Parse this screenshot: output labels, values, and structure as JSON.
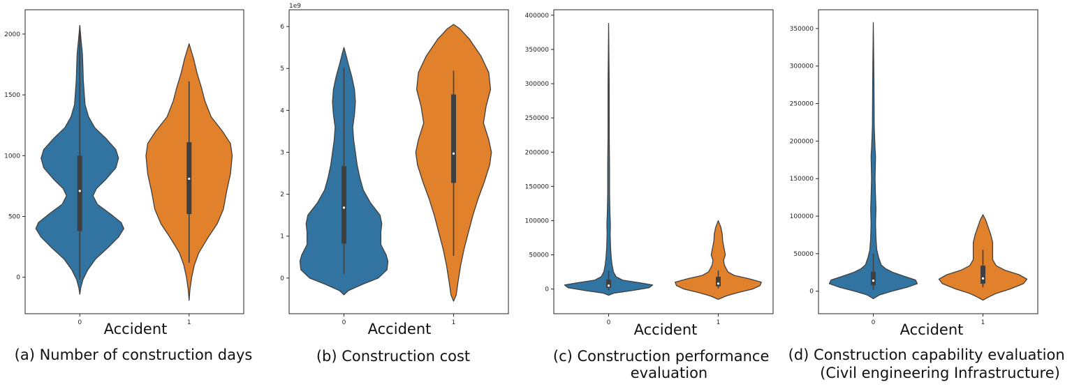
{
  "colors": {
    "class_0": "#3274a1",
    "class_1": "#e1812c",
    "outline": "#3f3f3f",
    "inner_box": "#3f3f3f",
    "median": "#ffffff"
  },
  "chart_data": [
    {
      "type": "violin",
      "caption": "(a) Number of construction days",
      "xlabel": "Accident",
      "categories": [
        "0",
        "1"
      ],
      "ylim": [
        -300,
        2200
      ],
      "yticks": [
        0,
        500,
        1000,
        1500,
        2000
      ],
      "ytick_labels": [
        "0",
        "500",
        "1000",
        "1500",
        "2000"
      ],
      "offset_label": "",
      "violins": [
        {
          "category": "0",
          "q1": 380,
          "median": 710,
          "q3": 1000,
          "whisker_low": -20,
          "whisker_high": 2070,
          "density": [
            [
              -140,
              0
            ],
            [
              -90,
              0.02
            ],
            [
              -20,
              0.07
            ],
            [
              60,
              0.18
            ],
            [
              150,
              0.36
            ],
            [
              250,
              0.66
            ],
            [
              330,
              0.88
            ],
            [
              400,
              1.0
            ],
            [
              450,
              0.94
            ],
            [
              520,
              0.7
            ],
            [
              600,
              0.4
            ],
            [
              670,
              0.3
            ],
            [
              730,
              0.38
            ],
            [
              800,
              0.58
            ],
            [
              900,
              0.82
            ],
            [
              980,
              0.88
            ],
            [
              1050,
              0.82
            ],
            [
              1140,
              0.6
            ],
            [
              1230,
              0.34
            ],
            [
              1320,
              0.2
            ],
            [
              1420,
              0.12
            ],
            [
              1520,
              0.1
            ],
            [
              1620,
              0.08
            ],
            [
              1730,
              0.07
            ],
            [
              1840,
              0.06
            ],
            [
              1950,
              0.03
            ],
            [
              2070,
              0
            ]
          ]
        },
        {
          "category": "1",
          "q1": 520,
          "median": 810,
          "q3": 1110,
          "whisker_low": 120,
          "whisker_high": 1610,
          "density": [
            [
              -190,
              0
            ],
            [
              -100,
              0.02
            ],
            [
              0,
              0.06
            ],
            [
              100,
              0.12
            ],
            [
              200,
              0.22
            ],
            [
              320,
              0.42
            ],
            [
              440,
              0.64
            ],
            [
              560,
              0.78
            ],
            [
              700,
              0.85
            ],
            [
              850,
              0.94
            ],
            [
              1000,
              0.98
            ],
            [
              1100,
              0.94
            ],
            [
              1200,
              0.76
            ],
            [
              1320,
              0.5
            ],
            [
              1450,
              0.36
            ],
            [
              1560,
              0.28
            ],
            [
              1680,
              0.18
            ],
            [
              1800,
              0.1
            ],
            [
              1920,
              0
            ]
          ]
        }
      ]
    },
    {
      "type": "violin",
      "caption": "(b) Construction cost",
      "xlabel": "Accident",
      "categories": [
        "0",
        "1"
      ],
      "ylim": [
        -0.85,
        6.4
      ],
      "yticks": [
        0,
        1,
        2,
        3,
        4,
        5,
        6
      ],
      "ytick_labels": [
        "0",
        "1",
        "2",
        "3",
        "4",
        "5",
        "6"
      ],
      "offset_label": "1e9",
      "violins": [
        {
          "category": "0",
          "q1": 0.82,
          "median": 1.68,
          "q3": 2.67,
          "whisker_low": 0.1,
          "whisker_high": 5.02,
          "density": [
            [
              -0.4,
              0
            ],
            [
              -0.3,
              0.1
            ],
            [
              -0.15,
              0.42
            ],
            [
              0,
              0.78
            ],
            [
              0.2,
              0.98
            ],
            [
              0.4,
              1.0
            ],
            [
              0.55,
              0.96
            ],
            [
              0.8,
              0.84
            ],
            [
              1.1,
              0.84
            ],
            [
              1.3,
              0.86
            ],
            [
              1.5,
              0.82
            ],
            [
              1.8,
              0.6
            ],
            [
              2.1,
              0.44
            ],
            [
              2.4,
              0.36
            ],
            [
              2.7,
              0.3
            ],
            [
              3.0,
              0.26
            ],
            [
              3.3,
              0.22
            ],
            [
              3.6,
              0.2
            ],
            [
              3.9,
              0.24
            ],
            [
              4.2,
              0.26
            ],
            [
              4.5,
              0.24
            ],
            [
              4.8,
              0.18
            ],
            [
              5.1,
              0.1
            ],
            [
              5.35,
              0.04
            ],
            [
              5.5,
              0
            ]
          ]
        },
        {
          "category": "1",
          "q1": 2.27,
          "median": 2.97,
          "q3": 4.38,
          "whisker_low": 0.53,
          "whisker_high": 4.95,
          "density": [
            [
              -0.55,
              0
            ],
            [
              -0.4,
              0.06
            ],
            [
              -0.1,
              0.1
            ],
            [
              0.3,
              0.16
            ],
            [
              0.7,
              0.24
            ],
            [
              1.1,
              0.34
            ],
            [
              1.5,
              0.44
            ],
            [
              1.9,
              0.56
            ],
            [
              2.3,
              0.7
            ],
            [
              2.7,
              0.82
            ],
            [
              3.0,
              0.86
            ],
            [
              3.3,
              0.8
            ],
            [
              3.7,
              0.68
            ],
            [
              4.1,
              0.74
            ],
            [
              4.5,
              0.84
            ],
            [
              4.9,
              0.8
            ],
            [
              5.3,
              0.62
            ],
            [
              5.7,
              0.36
            ],
            [
              5.95,
              0.14
            ],
            [
              6.05,
              0
            ]
          ]
        }
      ]
    },
    {
      "type": "violin",
      "caption": "(c) Construction performance evaluation",
      "xlabel": "Accident",
      "categories": [
        "0",
        "1"
      ],
      "ylim": [
        -36000,
        408000
      ],
      "yticks": [
        0,
        50000,
        100000,
        150000,
        200000,
        250000,
        300000,
        350000,
        400000
      ],
      "ytick_labels": [
        "0",
        "50000",
        "100000",
        "150000",
        "200000",
        "250000",
        "300000",
        "350000",
        "400000"
      ],
      "offset_label": "",
      "violins": [
        {
          "category": "0",
          "q1": 2000,
          "median": 5000,
          "q3": 14000,
          "whisker_low": -2000,
          "whisker_high": 27000,
          "density": [
            [
              -9000,
              0
            ],
            [
              -6000,
              0.12
            ],
            [
              -2000,
              0.55
            ],
            [
              2000,
              0.92
            ],
            [
              6000,
              1.0
            ],
            [
              9000,
              0.72
            ],
            [
              13000,
              0.32
            ],
            [
              18000,
              0.17
            ],
            [
              25000,
              0.11
            ],
            [
              35000,
              0.08
            ],
            [
              45000,
              0.06
            ],
            [
              60000,
              0.045
            ],
            [
              80000,
              0.035
            ],
            [
              95000,
              0.04
            ],
            [
              110000,
              0.03
            ],
            [
              140000,
              0.02
            ],
            [
              180000,
              0.02
            ],
            [
              220000,
              0.015
            ],
            [
              300000,
              0.012
            ],
            [
              388000,
              0
            ]
          ]
        },
        {
          "category": "1",
          "q1": 4000,
          "median": 8000,
          "q3": 18000,
          "whisker_low": 1000,
          "whisker_high": 27000,
          "density": [
            [
              -15000,
              0
            ],
            [
              -10000,
              0.18
            ],
            [
              -5000,
              0.45
            ],
            [
              0,
              0.78
            ],
            [
              5000,
              0.95
            ],
            [
              10000,
              0.98
            ],
            [
              15000,
              0.7
            ],
            [
              20000,
              0.36
            ],
            [
              25000,
              0.22
            ],
            [
              30000,
              0.18
            ],
            [
              35000,
              0.14
            ],
            [
              42000,
              0.12
            ],
            [
              50000,
              0.16
            ],
            [
              60000,
              0.13
            ],
            [
              70000,
              0.1
            ],
            [
              80000,
              0.09
            ],
            [
              90000,
              0.06
            ],
            [
              100000,
              0
            ]
          ]
        }
      ]
    },
    {
      "type": "violin",
      "caption": "(d) Construction capability evaluation (Civil engineering Infrastructure)",
      "xlabel": "Accident",
      "categories": [
        "0",
        "1"
      ],
      "ylim": [
        -30000,
        375000
      ],
      "yticks": [
        0,
        50000,
        100000,
        150000,
        200000,
        250000,
        300000,
        350000
      ],
      "ytick_labels": [
        "0",
        "50000",
        "100000",
        "150000",
        "200000",
        "250000",
        "300000",
        "350000"
      ],
      "offset_label": "",
      "violins": [
        {
          "category": "0",
          "q1": 8000,
          "median": 14000,
          "q3": 26000,
          "whisker_low": 2000,
          "whisker_high": 50000,
          "density": [
            [
              -10000,
              0
            ],
            [
              -5000,
              0.14
            ],
            [
              0,
              0.42
            ],
            [
              5000,
              0.76
            ],
            [
              10000,
              1.0
            ],
            [
              15000,
              0.96
            ],
            [
              20000,
              0.7
            ],
            [
              25000,
              0.45
            ],
            [
              30000,
              0.28
            ],
            [
              35000,
              0.18
            ],
            [
              45000,
              0.12
            ],
            [
              55000,
              0.08
            ],
            [
              70000,
              0.06
            ],
            [
              90000,
              0.05
            ],
            [
              110000,
              0.06
            ],
            [
              125000,
              0.05
            ],
            [
              150000,
              0.04
            ],
            [
              180000,
              0.05
            ],
            [
              190000,
              0.04
            ],
            [
              220000,
              0.02
            ],
            [
              280000,
              0.015
            ],
            [
              358000,
              0
            ]
          ]
        },
        {
          "category": "1",
          "q1": 10000,
          "median": 17000,
          "q3": 34000,
          "whisker_low": 5000,
          "whisker_high": 55000,
          "density": [
            [
              -12000,
              0
            ],
            [
              -8000,
              0.12
            ],
            [
              -3000,
              0.3
            ],
            [
              3000,
              0.62
            ],
            [
              10000,
              0.92
            ],
            [
              16000,
              1.0
            ],
            [
              22000,
              0.82
            ],
            [
              28000,
              0.5
            ],
            [
              34000,
              0.3
            ],
            [
              42000,
              0.22
            ],
            [
              55000,
              0.22
            ],
            [
              65000,
              0.22
            ],
            [
              75000,
              0.18
            ],
            [
              85000,
              0.12
            ],
            [
              95000,
              0.06
            ],
            [
              102000,
              0
            ]
          ]
        }
      ]
    }
  ]
}
